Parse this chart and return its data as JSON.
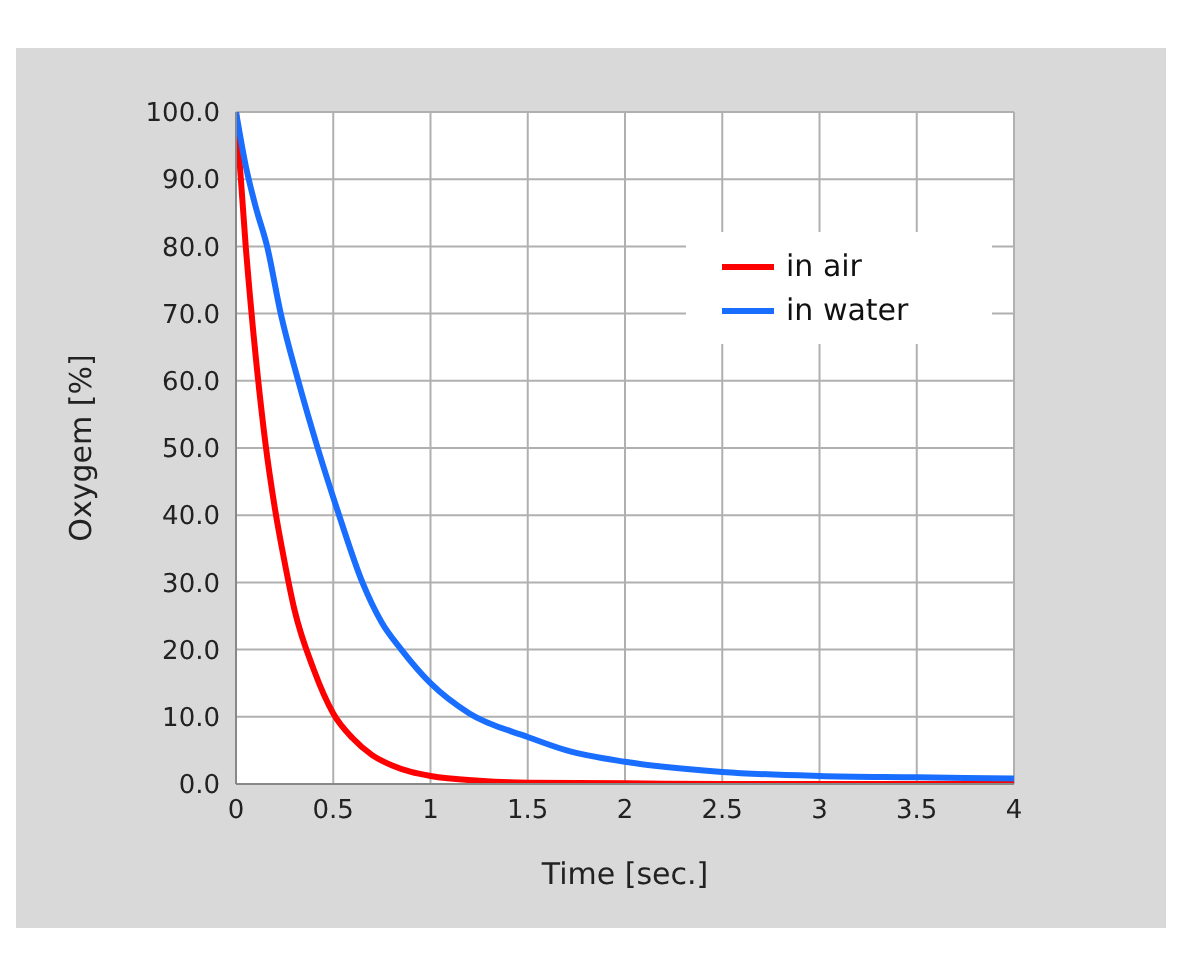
{
  "chart_data": {
    "type": "line",
    "xlabel": "Time [sec.]",
    "ylabel": "Oxygem [%]",
    "xlim": [
      0,
      4
    ],
    "xticks": [
      0,
      0.5,
      1,
      1.5,
      2,
      2.5,
      3,
      3.5,
      4
    ],
    "ylim": [
      0,
      100
    ],
    "yticks": [
      {
        "value": 0,
        "label": "0.0"
      },
      {
        "value": 10,
        "label": "10.0"
      },
      {
        "value": 20,
        "label": "20.0"
      },
      {
        "value": 30,
        "label": "30.0"
      },
      {
        "value": 40,
        "label": "40.0"
      },
      {
        "value": 50,
        "label": "50.0"
      },
      {
        "value": 60,
        "label": "60.0"
      },
      {
        "value": 70,
        "label": "70.0"
      },
      {
        "value": 80,
        "label": "80.0"
      },
      {
        "value": 90,
        "label": "90.0"
      },
      {
        "value": 100,
        "label": "100.0"
      }
    ],
    "grid": true,
    "legend": "top right",
    "marker": "none",
    "line_style": "solid",
    "series": [
      {
        "name": "in air",
        "color": "#ff0000",
        "x": [
          0,
          0.05,
          0.1,
          0.15,
          0.2,
          0.25,
          0.3,
          0.4,
          0.5,
          0.6,
          0.7,
          0.8,
          0.9,
          1,
          1.25,
          1.5,
          2,
          2.5,
          3,
          4
        ],
        "values": [
          100,
          80,
          64,
          51,
          41,
          33,
          26,
          17,
          10.5,
          6.8,
          4.3,
          2.8,
          1.8,
          1.2,
          0.5,
          0.2,
          0.1,
          0,
          0,
          0
        ]
      },
      {
        "name": "in water",
        "color": "#1a6eff",
        "x": [
          0,
          0.05,
          0.1,
          0.16,
          0.23,
          0.32,
          0.42,
          0.53,
          0.65,
          0.75,
          0.85,
          1,
          1.2,
          1.5,
          1.7,
          2,
          2.5,
          3,
          3.5,
          4
        ],
        "values": [
          100,
          92,
          86,
          80,
          70,
          60,
          50,
          40,
          30,
          24,
          20,
          15,
          10.5,
          7,
          5,
          3.3,
          1.8,
          1.2,
          1,
          0.8
        ]
      }
    ]
  }
}
